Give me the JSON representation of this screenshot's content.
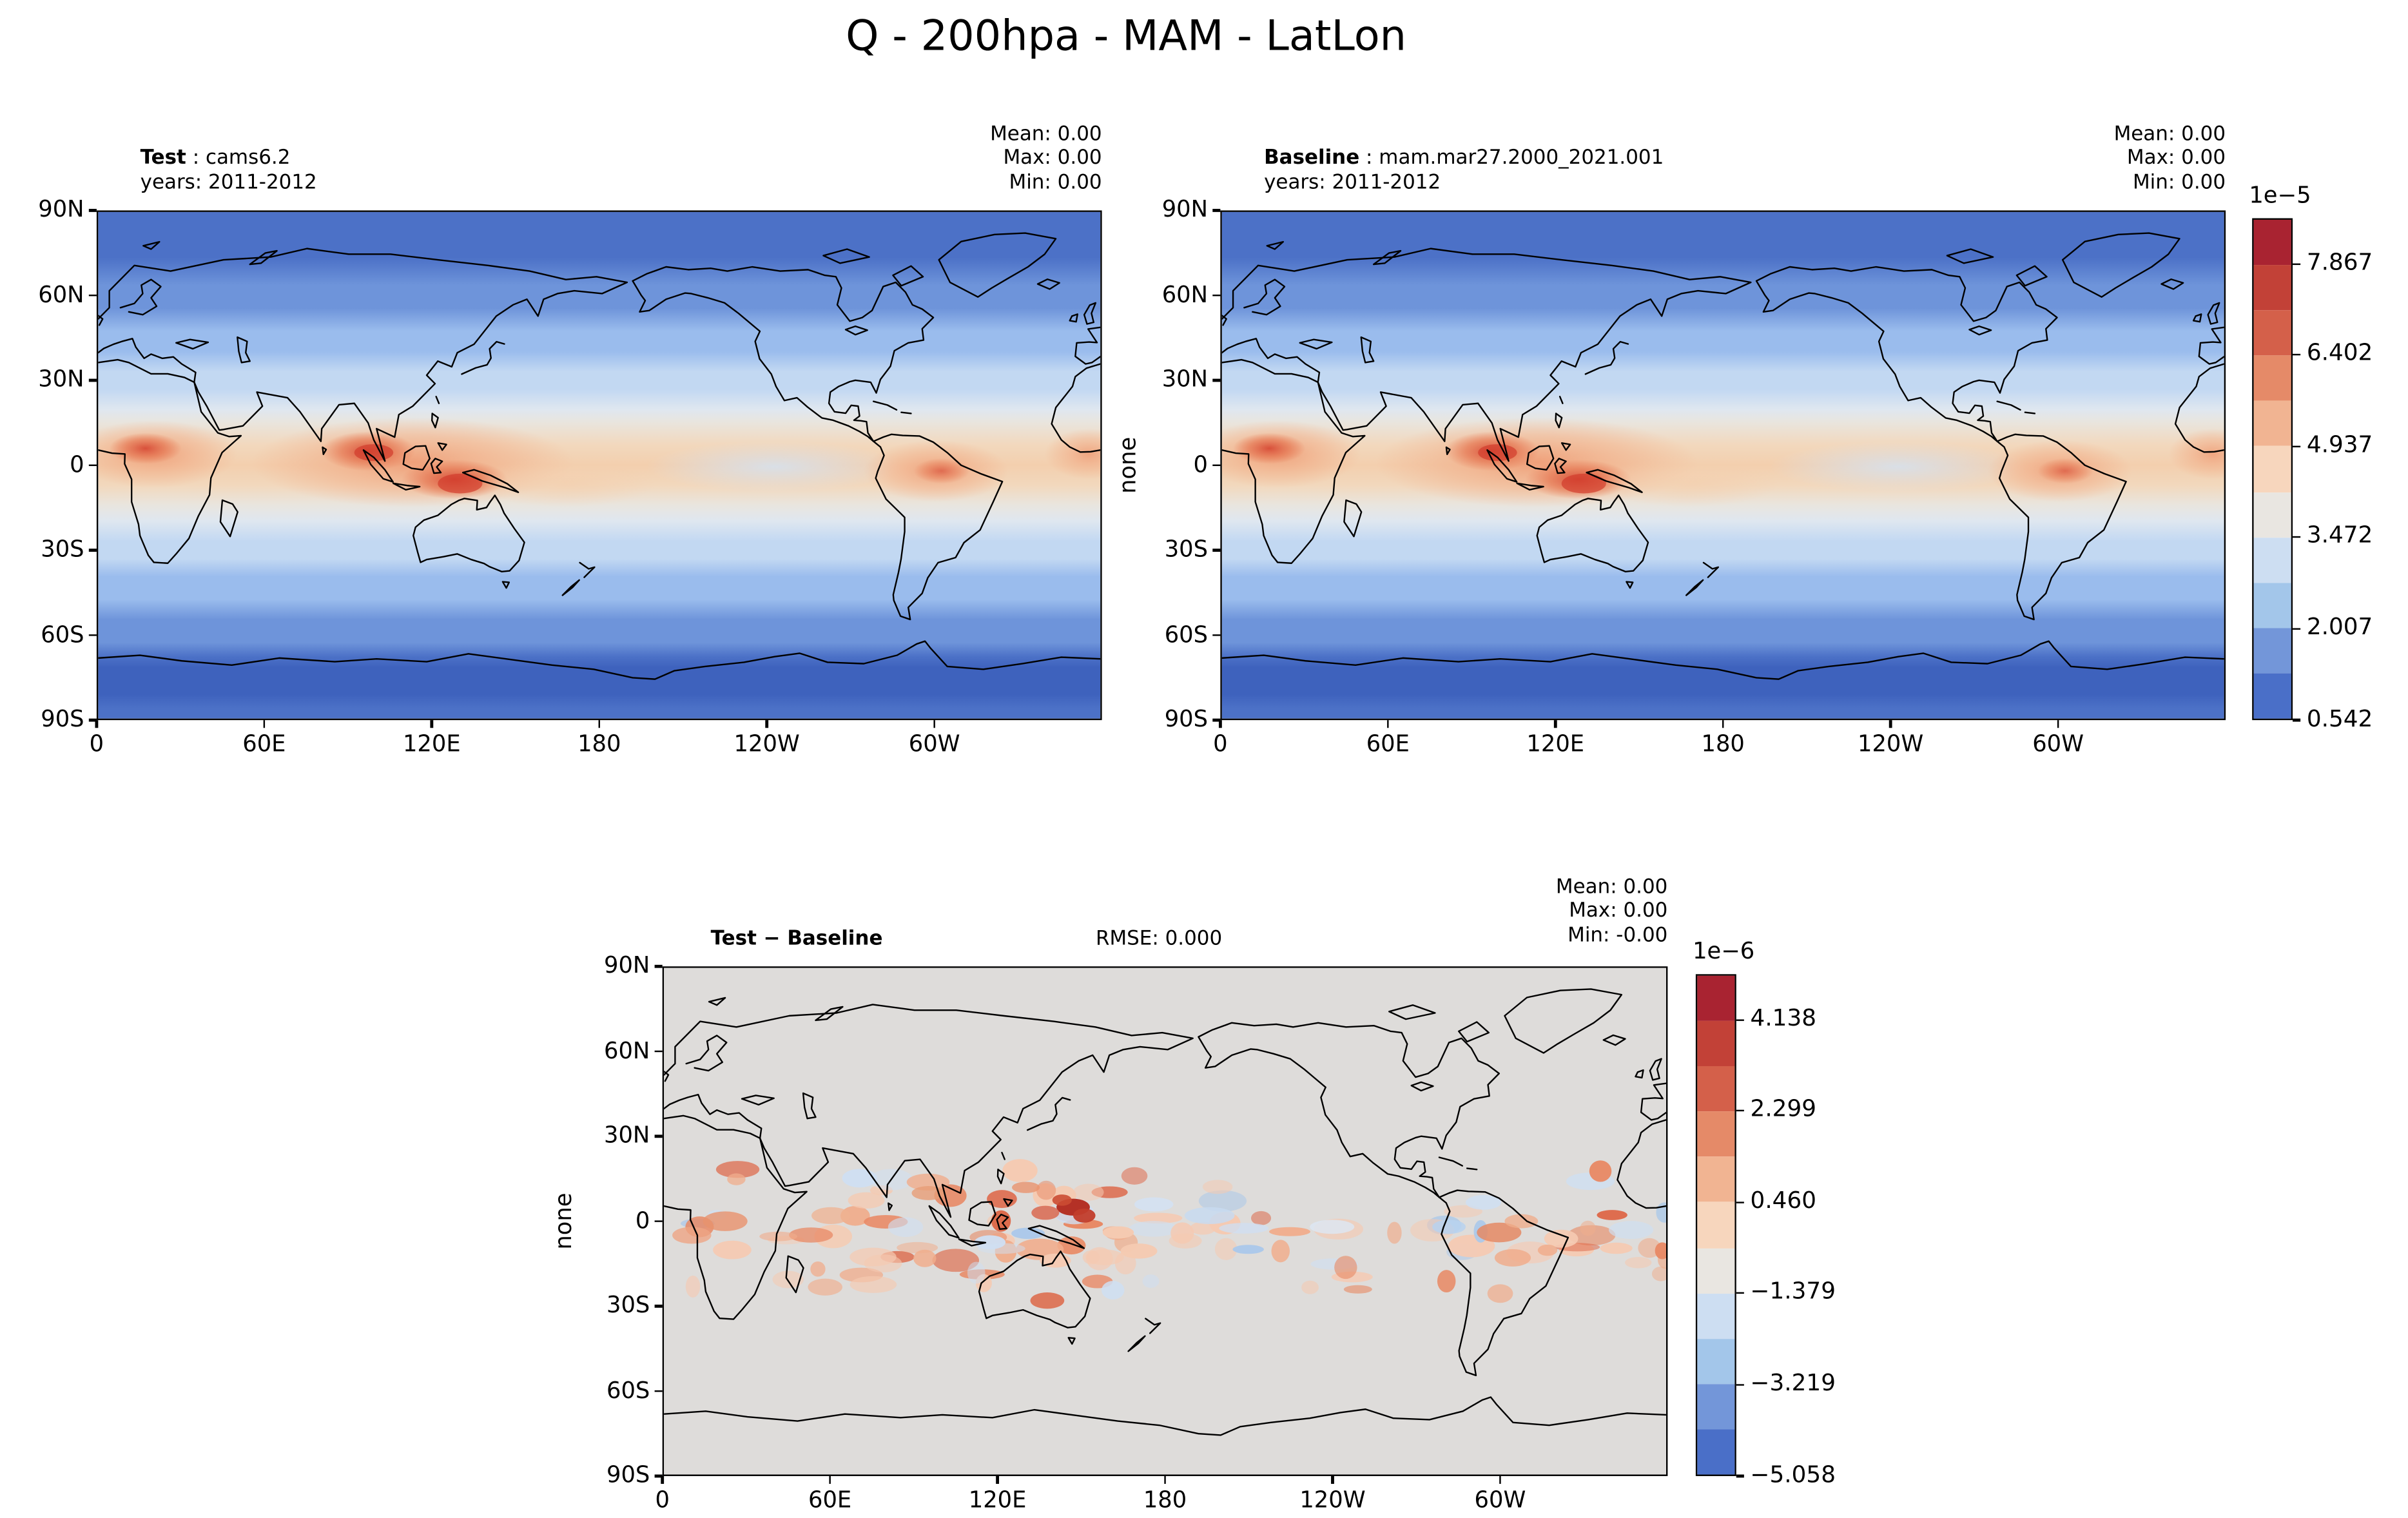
{
  "title": "Q - 200hpa - MAM - LatLon",
  "panels": [
    {
      "id": "test",
      "name_bold": "Test",
      "name_rest": " : cams6.2",
      "subtitle": "years: 2011-2012",
      "ylabel": "",
      "stats": [
        "Mean:  0.00",
        "Max:  0.00",
        "Min:  0.00"
      ]
    },
    {
      "id": "baseline",
      "name_bold": "Baseline",
      "name_rest": " : mam.mar27.2000_2021.001",
      "subtitle": "years: 2011-2012",
      "ylabel": "none",
      "stats": [
        "Mean:  0.00",
        "Max:  0.00",
        "Min:  0.00"
      ]
    },
    {
      "id": "diff",
      "name_bold": "Test − Baseline",
      "name_rest": "",
      "subtitle": "",
      "rmse": "RMSE: 0.000",
      "ylabel": "none",
      "stats": [
        "Mean:  0.00",
        "Max:  0.00",
        "Min: -0.00"
      ]
    }
  ],
  "axes": {
    "x": [
      {
        "label": "0",
        "lon": 0
      },
      {
        "label": "60E",
        "lon": 60
      },
      {
        "label": "120E",
        "lon": 120
      },
      {
        "label": "180",
        "lon": 180
      },
      {
        "label": "120W",
        "lon": 240
      },
      {
        "label": "60W",
        "lon": 300
      }
    ],
    "y": [
      {
        "label": "90N",
        "lat": 90
      },
      {
        "label": "60N",
        "lat": 60
      },
      {
        "label": "30N",
        "lat": 30
      },
      {
        "label": "0",
        "lat": 0
      },
      {
        "label": "30S",
        "lat": -30
      },
      {
        "label": "60S",
        "lat": -60
      },
      {
        "label": "90S",
        "lat": -90
      }
    ]
  },
  "colorbars": [
    {
      "exponent": "1e−5",
      "ticks": [
        "7.867",
        "6.402",
        "4.937",
        "3.472",
        "2.007",
        "0.542"
      ]
    },
    {
      "exponent": "1e−6",
      "ticks": [
        "4.138",
        "2.299",
        "0.460",
        "−1.379",
        "−3.219",
        "−5.058"
      ]
    }
  ],
  "palette": [
    "#a92331",
    "#c24137",
    "#d4604a",
    "#e58a68",
    "#f1b492",
    "#f7d6bd",
    "#e9e6e1",
    "#cddef2",
    "#a3c6ea",
    "#7396d9",
    "#4a6fc8"
  ],
  "chart_data": {
    "type": "heatmap",
    "variable": "Q",
    "level": "200hpa",
    "season": "MAM",
    "projection": "LatLon",
    "panels": [
      {
        "name": "Test",
        "source": "cams6.2",
        "years": "2011-2012",
        "mean": 0.0,
        "max": 0.0,
        "min": 0.0,
        "colorbar": {
          "scale": 1e-05,
          "ticks": [
            7.867,
            6.402,
            4.937,
            3.472,
            2.007,
            0.542
          ]
        }
      },
      {
        "name": "Baseline",
        "source": "mam.mar27.2000_2021.001",
        "years": "2011-2012",
        "mean": 0.0,
        "max": 0.0,
        "min": 0.0,
        "colorbar": {
          "scale": 1e-05,
          "ticks": [
            7.867,
            6.402,
            4.937,
            3.472,
            2.007,
            0.542
          ]
        }
      },
      {
        "name": "Test − Baseline",
        "rmse": 0.0,
        "mean": 0.0,
        "max": 0.0,
        "min": -0.0,
        "colorbar": {
          "scale": 1e-06,
          "ticks": [
            4.138,
            2.299,
            0.46,
            -1.379,
            -3.219,
            -5.058
          ]
        }
      }
    ],
    "x_axis": {
      "tick_labels": [
        "0",
        "60E",
        "120E",
        "180",
        "120W",
        "60W"
      ],
      "range_deg_lon": [
        0,
        360
      ]
    },
    "y_axis": {
      "tick_labels": [
        "90N",
        "60N",
        "30N",
        "0",
        "30S",
        "60S",
        "90S"
      ],
      "range_deg_lat": [
        90,
        -90
      ]
    },
    "field_description": "Zonally banded specific humidity: dark blue poles, light blue mid-latitudes, warm tan/orange equatorial band with red maxima over equatorial Africa, the Maritime Continent and South America; difference panel near zero (gray) with small red/blue speckles in the tropics, strongest red near New Guinea"
  }
}
